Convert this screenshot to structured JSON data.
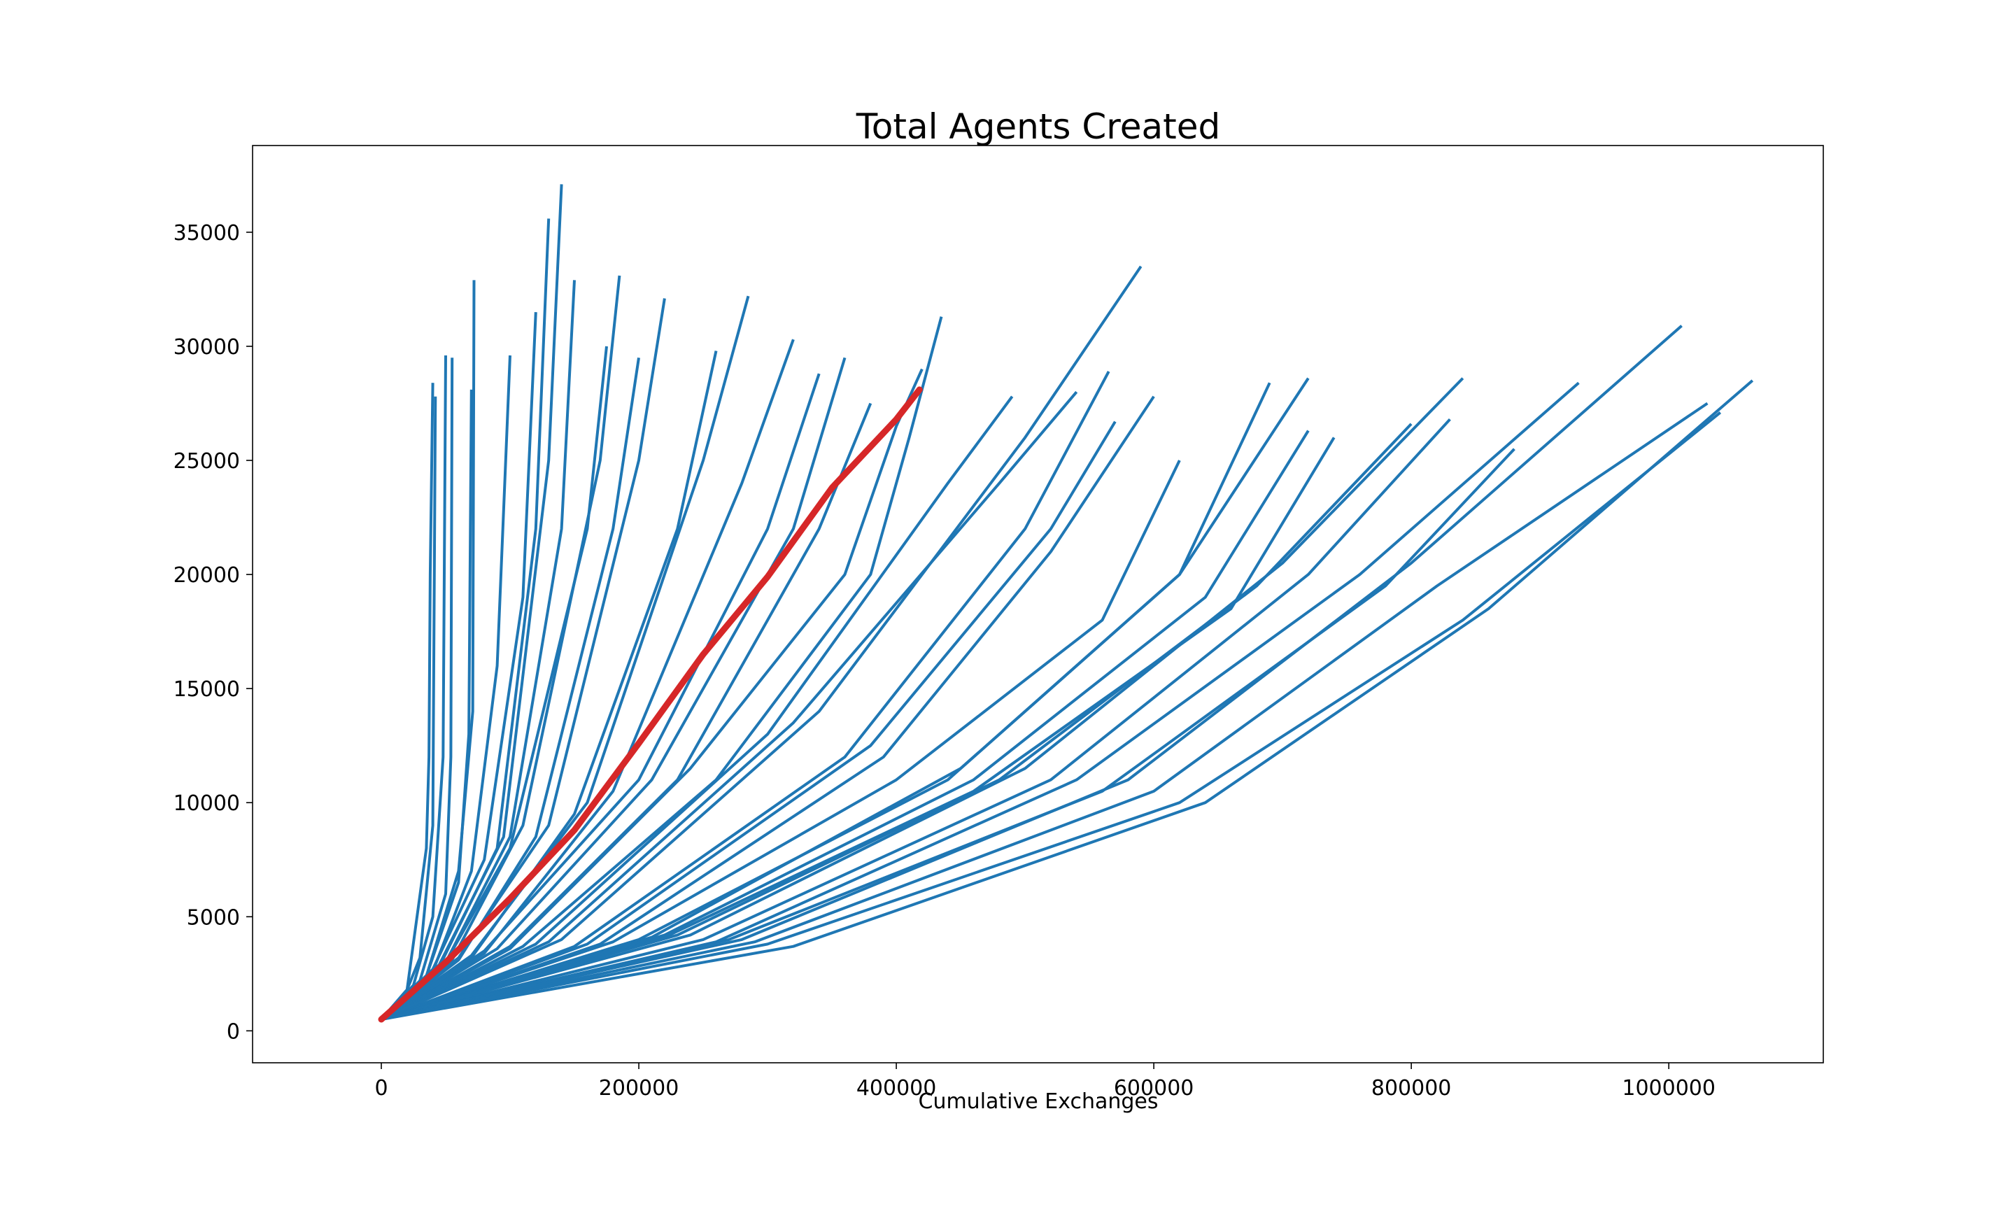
{
  "chart_data": {
    "type": "line",
    "title": "Total Agents Created",
    "xlabel": "Cumulative Exchanges",
    "ylabel": "",
    "xlim": [
      -100000,
      1120000
    ],
    "ylim": [
      -1400,
      38800
    ],
    "xticks": [
      0,
      200000,
      400000,
      600000,
      800000,
      1000000
    ],
    "yticks": [
      0,
      5000,
      10000,
      15000,
      20000,
      25000,
      30000,
      35000
    ],
    "grid": false,
    "legend": "none",
    "colors": {
      "series": "#1f77b4",
      "highlight": "#d62728"
    },
    "highlight_series": {
      "x": [
        0,
        50000,
        100000,
        150000,
        200000,
        250000,
        300000,
        350000,
        400000,
        418000
      ],
      "y": [
        500,
        3000,
        5800,
        8800,
        12600,
        16500,
        19900,
        23800,
        26800,
        28100
      ]
    },
    "series": [
      {
        "x": [
          0,
          20000,
          35000,
          37000,
          38000,
          40000
        ],
        "y": [
          500,
          1800,
          8000,
          12000,
          20000,
          28400
        ]
      },
      {
        "x": [
          0,
          20000,
          30000,
          40000,
          42000
        ],
        "y": [
          500,
          1800,
          3200,
          9000,
          27800
        ]
      },
      {
        "x": [
          0,
          25000,
          40000,
          48000,
          50000
        ],
        "y": [
          500,
          2000,
          5000,
          12000,
          29600
        ]
      },
      {
        "x": [
          0,
          30000,
          50000,
          54000,
          55000
        ],
        "y": [
          500,
          2200,
          6000,
          12000,
          29500
        ]
      },
      {
        "x": [
          0,
          35000,
          60000,
          68000,
          70000
        ],
        "y": [
          500,
          2400,
          6500,
          13000,
          28100
        ]
      },
      {
        "x": [
          0,
          35000,
          60000,
          71000,
          72000
        ],
        "y": [
          500,
          2400,
          7000,
          14000,
          32900
        ]
      },
      {
        "x": [
          0,
          40000,
          70000,
          90000,
          100000
        ],
        "y": [
          500,
          2600,
          7000,
          16000,
          29600
        ]
      },
      {
        "x": [
          0,
          40000,
          80000,
          110000,
          120000
        ],
        "y": [
          500,
          2700,
          7500,
          19000,
          31500
        ]
      },
      {
        "x": [
          0,
          45000,
          90000,
          120000,
          130000
        ],
        "y": [
          500,
          2800,
          8000,
          22000,
          35600
        ]
      },
      {
        "x": [
          0,
          45000,
          95000,
          130000,
          140000
        ],
        "y": [
          500,
          2900,
          8500,
          25000,
          37100
        ]
      },
      {
        "x": [
          0,
          50000,
          100000,
          140000,
          150000
        ],
        "y": [
          500,
          3000,
          8500,
          22000,
          32900
        ]
      },
      {
        "x": [
          0,
          50000,
          100000,
          160000,
          175000
        ],
        "y": [
          500,
          3000,
          8000,
          22000,
          30000
        ]
      },
      {
        "x": [
          0,
          55000,
          110000,
          170000,
          185000
        ],
        "y": [
          500,
          3100,
          9000,
          25000,
          33100
        ]
      },
      {
        "x": [
          0,
          60000,
          120000,
          180000,
          200000
        ],
        "y": [
          500,
          3100,
          8500,
          22000,
          29500
        ]
      },
      {
        "x": [
          0,
          60000,
          130000,
          200000,
          220000
        ],
        "y": [
          500,
          3200,
          9000,
          25000,
          32100
        ]
      },
      {
        "x": [
          0,
          70000,
          150000,
          230000,
          260000
        ],
        "y": [
          500,
          3200,
          9500,
          22000,
          29800
        ]
      },
      {
        "x": [
          0,
          70000,
          160000,
          250000,
          285000
        ],
        "y": [
          500,
          3300,
          10000,
          25000,
          32200
        ]
      },
      {
        "x": [
          0,
          80000,
          180000,
          280000,
          320000
        ],
        "y": [
          500,
          3400,
          10500,
          24000,
          30300
        ]
      },
      {
        "x": [
          0,
          80000,
          200000,
          300000,
          340000
        ],
        "y": [
          500,
          3500,
          11000,
          22000,
          28800
        ]
      },
      {
        "x": [
          0,
          90000,
          210000,
          320000,
          360000
        ],
        "y": [
          500,
          3600,
          11000,
          22000,
          29500
        ]
      },
      {
        "x": [
          0,
          100000,
          230000,
          340000,
          380000
        ],
        "y": [
          500,
          3700,
          11000,
          22000,
          27500
        ]
      },
      {
        "x": [
          0,
          100000,
          240000,
          360000,
          400000,
          420000
        ],
        "y": [
          500,
          3600,
          11500,
          20000,
          26500,
          29000
        ]
      },
      {
        "x": [
          0,
          110000,
          260000,
          380000,
          410000,
          435000
        ],
        "y": [
          500,
          3700,
          11000,
          20000,
          26000,
          31300
        ]
      },
      {
        "x": [
          0,
          120000,
          300000,
          440000,
          490000
        ],
        "y": [
          500,
          3800,
          13000,
          24000,
          27800
        ]
      },
      {
        "x": [
          0,
          130000,
          320000,
          480000,
          540000
        ],
        "y": [
          500,
          3900,
          13500,
          24000,
          28000
        ]
      },
      {
        "x": [
          0,
          140000,
          340000,
          500000,
          590000
        ],
        "y": [
          500,
          4000,
          14000,
          26000,
          33500
        ]
      },
      {
        "x": [
          0,
          150000,
          360000,
          500000,
          565000
        ],
        "y": [
          500,
          3700,
          12000,
          22000,
          28900
        ]
      },
      {
        "x": [
          0,
          160000,
          380000,
          520000,
          570000
        ],
        "y": [
          500,
          3800,
          12500,
          22000,
          26700
        ]
      },
      {
        "x": [
          0,
          170000,
          390000,
          520000,
          600000
        ],
        "y": [
          500,
          3800,
          12000,
          21000,
          27800
        ]
      },
      {
        "x": [
          0,
          180000,
          400000,
          560000,
          620000
        ],
        "y": [
          500,
          3900,
          11000,
          18000,
          25000
        ]
      },
      {
        "x": [
          0,
          200000,
          440000,
          620000,
          690000
        ],
        "y": [
          500,
          4000,
          11000,
          20000,
          28400
        ]
      },
      {
        "x": [
          0,
          210000,
          450000,
          620000,
          720000
        ],
        "y": [
          500,
          4100,
          11500,
          20000,
          28600
        ]
      },
      {
        "x": [
          0,
          220000,
          460000,
          640000,
          720000
        ],
        "y": [
          500,
          4200,
          11000,
          19000,
          26300
        ]
      },
      {
        "x": [
          0,
          220000,
          460000,
          660000,
          740000
        ],
        "y": [
          500,
          4100,
          10500,
          18500,
          26000
        ]
      },
      {
        "x": [
          0,
          230000,
          480000,
          680000,
          800000
        ],
        "y": [
          500,
          4200,
          11000,
          19500,
          26600
        ]
      },
      {
        "x": [
          0,
          240000,
          500000,
          700000,
          840000
        ],
        "y": [
          500,
          4200,
          11500,
          20500,
          28600
        ]
      },
      {
        "x": [
          0,
          250000,
          520000,
          720000,
          830000
        ],
        "y": [
          500,
          4000,
          11000,
          20000,
          26800
        ]
      },
      {
        "x": [
          0,
          260000,
          540000,
          760000,
          930000
        ],
        "y": [
          500,
          3900,
          11000,
          20000,
          28400
        ]
      },
      {
        "x": [
          0,
          270000,
          560000,
          780000,
          880000
        ],
        "y": [
          500,
          4000,
          10500,
          19500,
          25500
        ]
      },
      {
        "x": [
          0,
          280000,
          580000,
          800000,
          1010000
        ],
        "y": [
          500,
          4000,
          11000,
          20500,
          30900
        ]
      },
      {
        "x": [
          0,
          290000,
          600000,
          820000,
          1030000
        ],
        "y": [
          500,
          3900,
          10500,
          19500,
          27500
        ]
      },
      {
        "x": [
          0,
          300000,
          620000,
          840000,
          1040000
        ],
        "y": [
          500,
          3800,
          10000,
          18000,
          27100
        ]
      },
      {
        "x": [
          0,
          320000,
          640000,
          860000,
          1065000
        ],
        "y": [
          500,
          3700,
          10000,
          18500,
          28500
        ]
      }
    ]
  }
}
